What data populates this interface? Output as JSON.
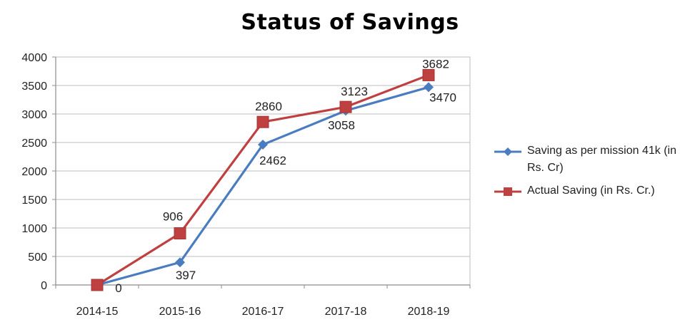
{
  "chart_data": {
    "type": "line",
    "title": "Status of Savings",
    "categories": [
      "2014-15",
      "2015-16",
      "2016-17",
      "2017-18",
      "2018-19"
    ],
    "ylim": [
      0,
      4000
    ],
    "yticks": [
      0,
      500,
      1000,
      1500,
      2000,
      2500,
      3000,
      3500,
      4000
    ],
    "grid": true,
    "legend_position": "right",
    "series": [
      {
        "name": "Saving as per mission 41k (in Rs. Cr)",
        "color": "#4a7cc0",
        "marker": "diamond",
        "values": [
          0,
          397,
          2462,
          3058,
          3470
        ],
        "labels": [
          "0",
          "397",
          "2462",
          "3058",
          "3470"
        ]
      },
      {
        "name": "Actual Saving (in Rs. Cr.)",
        "color": "#bf4040",
        "marker": "square",
        "values": [
          0,
          906,
          2860,
          3123,
          3682
        ],
        "labels": [
          "",
          "906",
          "2860",
          "3123",
          "3682"
        ]
      }
    ]
  }
}
